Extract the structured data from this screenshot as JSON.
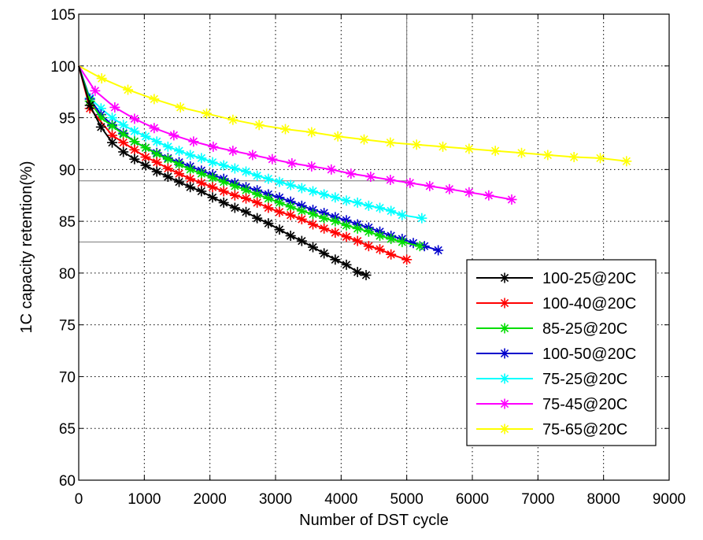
{
  "chart_data": {
    "type": "line",
    "title": "",
    "xlabel": "Number of DST cycle",
    "ylabel": "1C capacity retention(%)",
    "xlim": [
      0,
      9000
    ],
    "ylim": [
      60,
      105
    ],
    "xticks": [
      0,
      1000,
      2000,
      3000,
      4000,
      5000,
      6000,
      7000,
      8000,
      9000
    ],
    "yticks": [
      60,
      65,
      70,
      75,
      80,
      85,
      90,
      95,
      100,
      105
    ],
    "xtick_labels": [
      "0",
      "1000",
      "2000",
      "3000",
      "4000",
      "5000",
      "6000",
      "7000",
      "8000",
      "9000"
    ],
    "ytick_labels": [
      "60",
      "65",
      "70",
      "75",
      "80",
      "85",
      "90",
      "95",
      "100",
      "105"
    ],
    "grid": true,
    "legend_position": "bottom-right",
    "reference_lines": {
      "horizontal": [
        88.9,
        83.0
      ],
      "vertical": [
        5000
      ]
    },
    "series": [
      {
        "name": "100-25@20C",
        "color": "#000000",
        "marker": "asterisk",
        "x": [
          0,
          170,
          340,
          510,
          680,
          850,
          1020,
          1190,
          1360,
          1530,
          1700,
          1870,
          2040,
          2210,
          2380,
          2550,
          2720,
          2890,
          3060,
          3230,
          3400,
          3570,
          3740,
          3910,
          4080,
          4250,
          4380
        ],
        "y": [
          100,
          96.2,
          94.1,
          92.6,
          91.7,
          91.0,
          90.4,
          89.8,
          89.3,
          88.8,
          88.3,
          87.9,
          87.3,
          86.8,
          86.3,
          85.9,
          85.3,
          84.8,
          84.2,
          83.6,
          83.1,
          82.5,
          81.9,
          81.3,
          80.8,
          80.1,
          79.8
        ]
      },
      {
        "name": "100-40@20C",
        "color": "#ff0000",
        "marker": "asterisk",
        "x": [
          0,
          170,
          510,
          680,
          850,
          1020,
          1190,
          1360,
          1530,
          1700,
          1870,
          2040,
          2210,
          2380,
          2550,
          2720,
          2890,
          3060,
          3230,
          3400,
          3570,
          3740,
          3910,
          4080,
          4250,
          4420,
          4590,
          4760,
          5000
        ],
        "y": [
          100,
          95.9,
          93.3,
          92.6,
          91.9,
          91.2,
          90.7,
          90.1,
          89.6,
          89.1,
          88.7,
          88.3,
          87.9,
          87.5,
          87.2,
          86.8,
          86.3,
          85.9,
          85.6,
          85.2,
          84.7,
          84.3,
          83.9,
          83.5,
          83.1,
          82.6,
          82.3,
          81.8,
          81.3
        ]
      },
      {
        "name": "85-25@20C",
        "color": "#00dd00",
        "marker": "asterisk",
        "x": [
          0,
          170,
          340,
          510,
          680,
          850,
          1020,
          1190,
          1360,
          1530,
          1700,
          1870,
          2040,
          2210,
          2380,
          2550,
          2720,
          2890,
          3060,
          3230,
          3400,
          3570,
          3740,
          3910,
          4080,
          4250,
          4420,
          4590,
          4760,
          4930,
          5200
        ],
        "y": [
          100,
          96.6,
          95.0,
          94.2,
          93.4,
          92.7,
          92.1,
          91.5,
          91.0,
          90.5,
          90.0,
          89.6,
          89.2,
          88.8,
          88.4,
          88.0,
          87.6,
          87.2,
          86.8,
          86.4,
          86.0,
          85.7,
          85.3,
          85.0,
          84.6,
          84.3,
          84.0,
          83.6,
          83.3,
          83.0,
          82.6
        ]
      },
      {
        "name": "100-50@20C",
        "color": "#0000cc",
        "marker": "asterisk",
        "x": [
          0,
          170,
          340,
          510,
          680,
          850,
          1020,
          1190,
          1360,
          1530,
          1700,
          1870,
          2040,
          2210,
          2380,
          2550,
          2720,
          2890,
          3060,
          3230,
          3400,
          3570,
          3740,
          3910,
          4080,
          4250,
          4420,
          4590,
          4760,
          4930,
          5100,
          5270,
          5480
        ],
        "y": [
          100,
          96.8,
          95.3,
          94.3,
          93.5,
          92.7,
          92.1,
          91.6,
          91.1,
          90.7,
          90.3,
          89.9,
          89.5,
          89.1,
          88.7,
          88.3,
          88.0,
          87.6,
          87.3,
          86.9,
          86.5,
          86.1,
          85.8,
          85.4,
          85.1,
          84.7,
          84.4,
          84.0,
          83.6,
          83.3,
          82.9,
          82.6,
          82.2
        ]
      },
      {
        "name": "75-25@20C",
        "color": "#00ffff",
        "marker": "asterisk",
        "x": [
          0,
          170,
          340,
          510,
          680,
          850,
          1020,
          1190,
          1360,
          1530,
          1700,
          1870,
          2040,
          2210,
          2380,
          2550,
          2720,
          2890,
          3060,
          3230,
          3400,
          3570,
          3740,
          3910,
          4080,
          4250,
          4420,
          4590,
          4760,
          4930,
          5230
        ],
        "y": [
          100,
          96.9,
          95.9,
          95.0,
          94.3,
          93.7,
          93.2,
          92.7,
          92.2,
          91.8,
          91.4,
          91.1,
          90.7,
          90.4,
          90.1,
          89.8,
          89.4,
          89.1,
          88.8,
          88.5,
          88.2,
          87.9,
          87.6,
          87.3,
          87.0,
          86.8,
          86.5,
          86.3,
          86.0,
          85.6,
          85.3
        ]
      },
      {
        "name": "75-45@20C",
        "color": "#ff00ff",
        "marker": "asterisk",
        "x": [
          0,
          250,
          550,
          850,
          1150,
          1450,
          1750,
          2050,
          2350,
          2650,
          2950,
          3250,
          3550,
          3850,
          4150,
          4450,
          4750,
          5050,
          5350,
          5650,
          5950,
          6250,
          6600
        ],
        "y": [
          100,
          97.6,
          96.0,
          94.9,
          94.0,
          93.3,
          92.7,
          92.2,
          91.8,
          91.4,
          91.0,
          90.6,
          90.3,
          90.0,
          89.6,
          89.3,
          89.0,
          88.7,
          88.4,
          88.1,
          87.8,
          87.5,
          87.1
        ]
      },
      {
        "name": "75-65@20C",
        "color": "#ffff00",
        "marker": "asterisk",
        "x": [
          0,
          350,
          750,
          1150,
          1550,
          1950,
          2350,
          2750,
          3150,
          3550,
          3950,
          4350,
          4750,
          5150,
          5550,
          5950,
          6350,
          6750,
          7150,
          7550,
          7950,
          8350
        ],
        "y": [
          100,
          98.8,
          97.7,
          96.8,
          96.0,
          95.4,
          94.8,
          94.3,
          93.9,
          93.6,
          93.2,
          92.9,
          92.6,
          92.4,
          92.2,
          92.0,
          91.8,
          91.6,
          91.4,
          91.2,
          91.1,
          90.8
        ]
      }
    ]
  }
}
